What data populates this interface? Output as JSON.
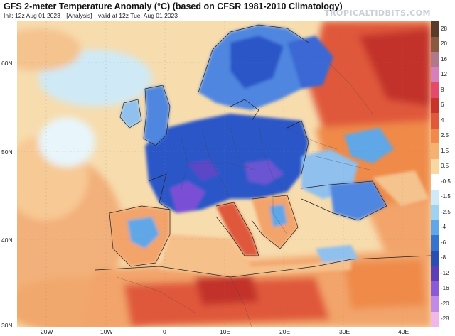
{
  "header": {
    "title": "GFS 2-meter Temperature Anomaly (°C) (based on CFSR 1981-2010 Climatology)",
    "init": "Init: 12z Aug 01 2023",
    "analysis": "[Analysis]",
    "valid": "valid at 12z Tue, Aug 01 2023",
    "brand": "TROPICALTIDBITS.COM"
  },
  "map": {
    "latitudes": [
      "60N",
      "50N",
      "40N",
      "30N"
    ],
    "longitudes": [
      "20W",
      "10W",
      "0",
      "10E",
      "20E",
      "30E",
      "40E"
    ],
    "colors": {
      "ocean_warm": "#f6d6a6",
      "deep_cold": "#2c57c8",
      "mid_cold": "#4f86e0",
      "light_cold": "#8fc0ee",
      "warm": "#f2a46a",
      "hot": "#e0593a",
      "very_hot": "#c2332a",
      "purple": "#7a4fd6"
    }
  },
  "colorbar": {
    "labels": [
      "28",
      "20",
      "16",
      "12",
      "8",
      "6",
      "4",
      "2.5",
      "1.5",
      "0.5",
      "-0.5",
      "-1.5",
      "-2.5",
      "-4",
      "-6",
      "-8",
      "-12",
      "-16",
      "-20",
      "-28"
    ],
    "colors": [
      "#5a3a28",
      "#8a5a40",
      "#b0788a",
      "#d77fb8",
      "#e64a6a",
      "#c8342a",
      "#e0593a",
      "#ef8a4a",
      "#f6b070",
      "#f8d7a2",
      "#ffffff",
      "#cfe9f6",
      "#9fd1f0",
      "#5fa7e6",
      "#3474cf",
      "#2a4fb2",
      "#5b3fb8",
      "#8a5bd8",
      "#c08ae6",
      "#f0b8e8"
    ]
  }
}
